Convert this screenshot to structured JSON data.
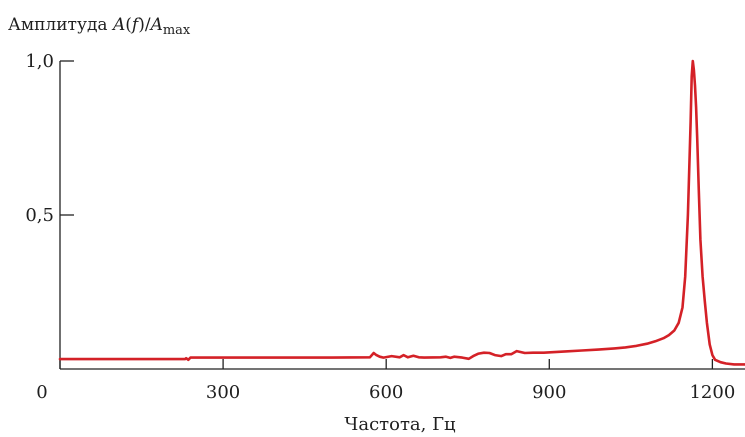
{
  "chart_data": {
    "type": "line",
    "title": "",
    "ylabel": {
      "prefix": "Амплитуда ",
      "a": "A",
      "open": "(",
      "f": "f",
      "close": ")/",
      "a2": "A",
      "sub": "max"
    },
    "xlabel": "Частота, Гц",
    "xlim": [
      0,
      1260
    ],
    "ylim": [
      0,
      1.0
    ],
    "x_ticks": [
      {
        "value": 0,
        "label": "0"
      },
      {
        "value": 300,
        "label": "300"
      },
      {
        "value": 600,
        "label": "600"
      },
      {
        "value": 900,
        "label": "900"
      },
      {
        "value": 1200,
        "label": "1200"
      }
    ],
    "y_ticks": [
      {
        "value": 0.5,
        "label": "0,5"
      },
      {
        "value": 1.0,
        "label": "1,0"
      }
    ],
    "grid": false,
    "legend": "none",
    "line_color": "#d42127",
    "series": [
      {
        "x": [
          0,
          230,
          232,
          236,
          240,
          300,
          400,
          500,
          570,
          577,
          582,
          588,
          595,
          610,
          625,
          632,
          640,
          650,
          660,
          670,
          700,
          710,
          718,
          725,
          740,
          752,
          760,
          770,
          780,
          790,
          800,
          812,
          820,
          830,
          840,
          855,
          870,
          890,
          910,
          930,
          960,
          990,
          1020,
          1040,
          1060,
          1080,
          1095,
          1110,
          1120,
          1130,
          1138,
          1145,
          1150,
          1155,
          1160,
          1162,
          1164,
          1166,
          1168,
          1170,
          1172,
          1175,
          1178,
          1182,
          1186,
          1190,
          1195,
          1200,
          1205,
          1215,
          1225,
          1240,
          1260
        ],
        "y": [
          0.032,
          0.032,
          0.035,
          0.03,
          0.037,
          0.037,
          0.037,
          0.037,
          0.038,
          0.052,
          0.045,
          0.04,
          0.037,
          0.042,
          0.038,
          0.045,
          0.038,
          0.043,
          0.038,
          0.037,
          0.038,
          0.04,
          0.036,
          0.04,
          0.037,
          0.033,
          0.042,
          0.05,
          0.053,
          0.052,
          0.045,
          0.042,
          0.048,
          0.048,
          0.058,
          0.052,
          0.053,
          0.053,
          0.055,
          0.057,
          0.06,
          0.063,
          0.067,
          0.07,
          0.075,
          0.082,
          0.09,
          0.1,
          0.11,
          0.125,
          0.15,
          0.2,
          0.3,
          0.5,
          0.8,
          0.95,
          1.0,
          0.97,
          0.92,
          0.85,
          0.75,
          0.58,
          0.42,
          0.3,
          0.22,
          0.15,
          0.08,
          0.045,
          0.03,
          0.022,
          0.018,
          0.015,
          0.015
        ]
      }
    ]
  }
}
